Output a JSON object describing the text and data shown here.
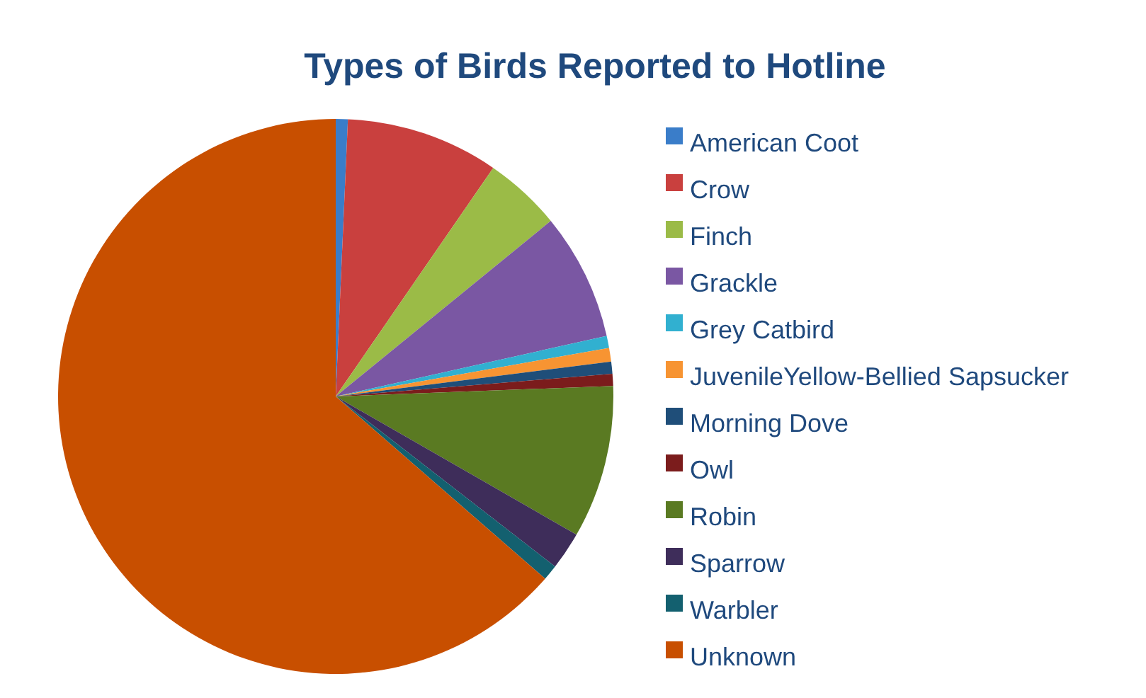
{
  "chart_data": {
    "type": "pie",
    "title": "Types of Birds Reported to Hotline",
    "categories": [
      "American Coot",
      "Crow",
      "Finch",
      "Grackle",
      "Grey Catbird",
      "JuvenileYellow-Bellied Sapsucker",
      "Morning Dove",
      "Owl",
      "Robin",
      "Sparrow",
      "Warbler",
      "Unknown"
    ],
    "values": [
      0.7,
      8.9,
      4.5,
      7.4,
      0.7,
      0.8,
      0.7,
      0.7,
      8.9,
      2.2,
      0.9,
      63.6
    ],
    "colors": [
      "#3a7dc9",
      "#c9403e",
      "#9bbb47",
      "#7a57a3",
      "#31b0d0",
      "#f79432",
      "#1f4e79",
      "#7b1c1c",
      "#5a7a22",
      "#3e2d5a",
      "#13606f",
      "#c84f00"
    ],
    "legend": "right"
  }
}
